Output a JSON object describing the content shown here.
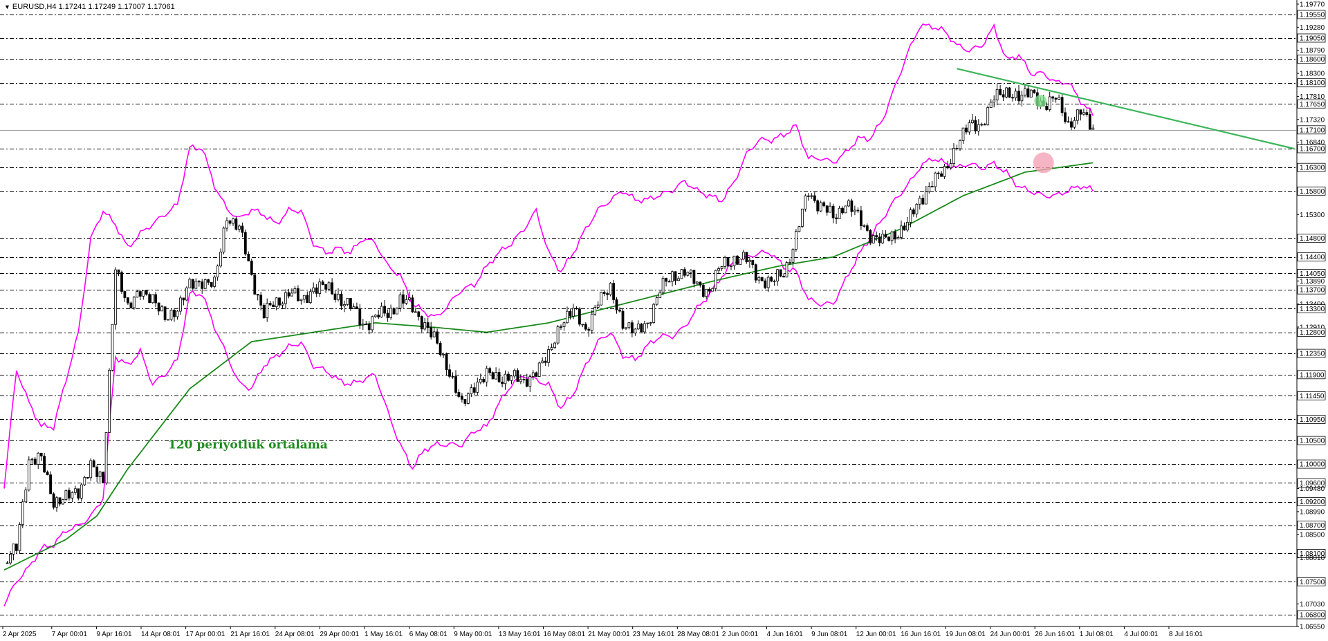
{
  "header": {
    "symbol": "EURUSD,H4",
    "ohlc": "1.17241 1.17249 1.17007 1.17061"
  },
  "colors": {
    "background": "#ffffff",
    "grid": "#000000",
    "candle": "#000000",
    "bands": "#ff00ff",
    "moving_average": "#1a8a1a",
    "trendline": "#3cb55a",
    "marker_green": "#7ee08a",
    "marker_red": "#f4a3b5",
    "price_label_bg": "#ffffff"
  },
  "chart_data": {
    "type": "candlestick",
    "timeframe": "H4",
    "ylim": [
      1.0655,
      1.1977
    ],
    "price_levels": [
      "1.19550",
      "1.19050",
      "1.18600",
      "1.18100",
      "1.17650",
      "1.17100",
      "1.16700",
      "1.16300",
      "1.15800",
      "1.14800",
      "1.14400",
      "1.14050",
      "1.13700",
      "1.13300",
      "1.12800",
      "1.12350",
      "1.11900",
      "1.11450",
      "1.10950",
      "1.10500",
      "1.10000",
      "1.09600",
      "1.09200",
      "1.08700",
      "1.08100",
      "1.07500",
      "1.06800"
    ],
    "y_ticks": [
      "1.19770",
      "1.19550",
      "1.19280",
      "1.19050",
      "1.18790",
      "1.18600",
      "1.18300",
      "1.18100",
      "1.17810",
      "1.17650",
      "1.17320",
      "1.17100",
      "1.16840",
      "1.16700",
      "1.16300",
      "1.15800",
      "1.15300",
      "1.14800",
      "1.14400",
      "1.14050",
      "1.13890",
      "1.13700",
      "1.13400",
      "1.13300",
      "1.12910",
      "1.12800",
      "1.12350",
      "1.11900",
      "1.11450",
      "1.10950",
      "1.10500",
      "1.10000",
      "1.09600",
      "1.09480",
      "1.09200",
      "1.08990",
      "1.08700",
      "1.08500",
      "1.08100",
      "1.08010",
      "1.07500",
      "1.07030",
      "1.06800",
      "1.06550"
    ],
    "x_ticks": [
      "2 Apr 2025",
      "7 Apr 00:01",
      "9 Apr 16:01",
      "14 Apr 08:01",
      "17 Apr 00:01",
      "21 Apr 16:01",
      "24 Apr 08:01",
      "29 Apr 00:01",
      "1 May 16:01",
      "6 May 08:01",
      "9 May 00:01",
      "13 May 16:01",
      "16 May 08:01",
      "21 May 00:01",
      "23 May 16:01",
      "28 May 08:01",
      "2 Jun 00:01",
      "4 Jun 16:01",
      "9 Jun 08:01",
      "12 Jun 00:01",
      "16 Jun 16:01",
      "19 Jun 08:01",
      "24 Jun 00:01",
      "26 Jun 16:01",
      "1 Jul 08:01",
      "4 Jul 00:01",
      "8 Jul 16:01"
    ],
    "current_price": "1.17100",
    "close_path": [
      [
        0,
        1.079
      ],
      [
        4,
        1.082
      ],
      [
        8,
        1.101
      ],
      [
        12,
        1.101
      ],
      [
        16,
        1.092
      ],
      [
        20,
        1.093
      ],
      [
        24,
        1.094
      ],
      [
        28,
        1.1
      ],
      [
        32,
        1.096
      ],
      [
        36,
        1.142
      ],
      [
        40,
        1.133
      ],
      [
        44,
        1.137
      ],
      [
        48,
        1.135
      ],
      [
        52,
        1.131
      ],
      [
        56,
        1.133
      ],
      [
        60,
        1.138
      ],
      [
        64,
        1.139
      ],
      [
        68,
        1.138
      ],
      [
        72,
        1.153
      ],
      [
        76,
        1.15
      ],
      [
        80,
        1.14
      ],
      [
        84,
        1.132
      ],
      [
        88,
        1.134
      ],
      [
        92,
        1.137
      ],
      [
        96,
        1.134
      ],
      [
        100,
        1.138
      ],
      [
        104,
        1.137
      ],
      [
        108,
        1.136
      ],
      [
        112,
        1.133
      ],
      [
        116,
        1.13
      ],
      [
        120,
        1.131
      ],
      [
        124,
        1.132
      ],
      [
        128,
        1.135
      ],
      [
        132,
        1.133
      ],
      [
        136,
        1.13
      ],
      [
        140,
        1.125
      ],
      [
        144,
        1.12
      ],
      [
        148,
        1.112
      ],
      [
        152,
        1.117
      ],
      [
        156,
        1.119
      ],
      [
        160,
        1.118
      ],
      [
        164,
        1.119
      ],
      [
        168,
        1.117
      ],
      [
        172,
        1.12
      ],
      [
        176,
        1.123
      ],
      [
        180,
        1.13
      ],
      [
        184,
        1.133
      ],
      [
        188,
        1.128
      ],
      [
        192,
        1.135
      ],
      [
        196,
        1.137
      ],
      [
        200,
        1.13
      ],
      [
        204,
        1.128
      ],
      [
        208,
        1.13
      ],
      [
        212,
        1.137
      ],
      [
        216,
        1.14
      ],
      [
        220,
        1.141
      ],
      [
        224,
        1.138
      ],
      [
        228,
        1.137
      ],
      [
        232,
        1.142
      ],
      [
        236,
        1.144
      ],
      [
        240,
        1.143
      ],
      [
        244,
        1.14
      ],
      [
        248,
        1.138
      ],
      [
        252,
        1.141
      ],
      [
        256,
        1.148
      ],
      [
        260,
        1.158
      ],
      [
        264,
        1.155
      ],
      [
        268,
        1.152
      ],
      [
        272,
        1.156
      ],
      [
        276,
        1.152
      ],
      [
        280,
        1.149
      ],
      [
        284,
        1.147
      ],
      [
        288,
        1.149
      ],
      [
        292,
        1.151
      ],
      [
        296,
        1.156
      ],
      [
        300,
        1.16
      ],
      [
        304,
        1.162
      ],
      [
        308,
        1.168
      ],
      [
        312,
        1.172
      ],
      [
        316,
        1.172
      ],
      [
        320,
        1.178
      ],
      [
        324,
        1.179
      ],
      [
        328,
        1.178
      ],
      [
        332,
        1.179
      ],
      [
        336,
        1.176
      ],
      [
        340,
        1.178
      ],
      [
        344,
        1.172
      ],
      [
        348,
        1.175
      ],
      [
        352,
        1.171
      ]
    ],
    "upper_band_path": [
      [
        0,
        1.095
      ],
      [
        4,
        1.12
      ],
      [
        8,
        1.113
      ],
      [
        12,
        1.108
      ],
      [
        16,
        1.108
      ],
      [
        20,
        1.118
      ],
      [
        24,
        1.128
      ],
      [
        28,
        1.148
      ],
      [
        32,
        1.154
      ],
      [
        36,
        1.151
      ],
      [
        40,
        1.146
      ],
      [
        44,
        1.149
      ],
      [
        48,
        1.151
      ],
      [
        52,
        1.153
      ],
      [
        56,
        1.155
      ],
      [
        60,
        1.167
      ],
      [
        64,
        1.167
      ],
      [
        68,
        1.159
      ],
      [
        72,
        1.154
      ],
      [
        76,
        1.152
      ],
      [
        80,
        1.154
      ],
      [
        84,
        1.153
      ],
      [
        88,
        1.151
      ],
      [
        92,
        1.154
      ],
      [
        96,
        1.154
      ],
      [
        100,
        1.147
      ],
      [
        104,
        1.145
      ],
      [
        108,
        1.146
      ],
      [
        112,
        1.145
      ],
      [
        116,
        1.148
      ],
      [
        120,
        1.147
      ],
      [
        124,
        1.142
      ],
      [
        128,
        1.14
      ],
      [
        132,
        1.134
      ],
      [
        136,
        1.132
      ],
      [
        140,
        1.131
      ],
      [
        144,
        1.134
      ],
      [
        148,
        1.137
      ],
      [
        152,
        1.138
      ],
      [
        156,
        1.142
      ],
      [
        160,
        1.145
      ],
      [
        164,
        1.147
      ],
      [
        168,
        1.15
      ],
      [
        172,
        1.154
      ],
      [
        176,
        1.145
      ],
      [
        180,
        1.141
      ],
      [
        184,
        1.145
      ],
      [
        188,
        1.15
      ],
      [
        192,
        1.154
      ],
      [
        196,
        1.156
      ],
      [
        200,
        1.158
      ],
      [
        204,
        1.156
      ],
      [
        208,
        1.156
      ],
      [
        212,
        1.157
      ],
      [
        216,
        1.158
      ],
      [
        220,
        1.16
      ],
      [
        224,
        1.158
      ],
      [
        228,
        1.157
      ],
      [
        232,
        1.156
      ],
      [
        236,
        1.16
      ],
      [
        240,
        1.166
      ],
      [
        244,
        1.169
      ],
      [
        248,
        1.169
      ],
      [
        252,
        1.17
      ],
      [
        256,
        1.172
      ],
      [
        260,
        1.165
      ],
      [
        264,
        1.165
      ],
      [
        268,
        1.164
      ],
      [
        272,
        1.166
      ],
      [
        276,
        1.169
      ],
      [
        280,
        1.169
      ],
      [
        284,
        1.173
      ],
      [
        288,
        1.18
      ],
      [
        292,
        1.187
      ],
      [
        296,
        1.193
      ],
      [
        300,
        1.193
      ],
      [
        304,
        1.192
      ],
      [
        308,
        1.189
      ],
      [
        312,
        1.188
      ],
      [
        316,
        1.189
      ],
      [
        320,
        1.193
      ],
      [
        324,
        1.186
      ],
      [
        328,
        1.187
      ],
      [
        332,
        1.183
      ],
      [
        336,
        1.183
      ],
      [
        340,
        1.181
      ],
      [
        344,
        1.181
      ],
      [
        348,
        1.177
      ],
      [
        352,
        1.174
      ]
    ],
    "lower_band_path": [
      [
        0,
        1.07
      ],
      [
        4,
        1.075
      ],
      [
        8,
        1.078
      ],
      [
        12,
        1.082
      ],
      [
        16,
        1.083
      ],
      [
        20,
        1.086
      ],
      [
        24,
        1.087
      ],
      [
        28,
        1.089
      ],
      [
        32,
        1.093
      ],
      [
        36,
        1.123
      ],
      [
        40,
        1.121
      ],
      [
        44,
        1.124
      ],
      [
        48,
        1.117
      ],
      [
        52,
        1.119
      ],
      [
        56,
        1.122
      ],
      [
        60,
        1.136
      ],
      [
        64,
        1.136
      ],
      [
        68,
        1.129
      ],
      [
        72,
        1.123
      ],
      [
        76,
        1.117
      ],
      [
        80,
        1.116
      ],
      [
        84,
        1.121
      ],
      [
        88,
        1.123
      ],
      [
        92,
        1.125
      ],
      [
        96,
        1.126
      ],
      [
        100,
        1.121
      ],
      [
        104,
        1.12
      ],
      [
        108,
        1.118
      ],
      [
        112,
        1.117
      ],
      [
        116,
        1.118
      ],
      [
        120,
        1.119
      ],
      [
        124,
        1.111
      ],
      [
        128,
        1.104
      ],
      [
        132,
        1.099
      ],
      [
        136,
        1.103
      ],
      [
        140,
        1.104
      ],
      [
        144,
        1.104
      ],
      [
        148,
        1.104
      ],
      [
        152,
        1.107
      ],
      [
        156,
        1.108
      ],
      [
        160,
        1.113
      ],
      [
        164,
        1.117
      ],
      [
        168,
        1.119
      ],
      [
        172,
        1.118
      ],
      [
        176,
        1.117
      ],
      [
        180,
        1.112
      ],
      [
        184,
        1.115
      ],
      [
        188,
        1.121
      ],
      [
        192,
        1.126
      ],
      [
        196,
        1.128
      ],
      [
        200,
        1.123
      ],
      [
        204,
        1.122
      ],
      [
        208,
        1.125
      ],
      [
        212,
        1.127
      ],
      [
        216,
        1.127
      ],
      [
        220,
        1.129
      ],
      [
        224,
        1.133
      ],
      [
        228,
        1.136
      ],
      [
        232,
        1.14
      ],
      [
        236,
        1.143
      ],
      [
        240,
        1.144
      ],
      [
        244,
        1.145
      ],
      [
        248,
        1.145
      ],
      [
        252,
        1.142
      ],
      [
        256,
        1.141
      ],
      [
        260,
        1.135
      ],
      [
        264,
        1.134
      ],
      [
        268,
        1.134
      ],
      [
        272,
        1.139
      ],
      [
        276,
        1.144
      ],
      [
        280,
        1.148
      ],
      [
        284,
        1.152
      ],
      [
        288,
        1.156
      ],
      [
        292,
        1.159
      ],
      [
        296,
        1.163
      ],
      [
        300,
        1.165
      ],
      [
        304,
        1.164
      ],
      [
        308,
        1.163
      ],
      [
        312,
        1.164
      ],
      [
        316,
        1.163
      ],
      [
        320,
        1.164
      ],
      [
        324,
        1.162
      ],
      [
        328,
        1.159
      ],
      [
        332,
        1.158
      ],
      [
        336,
        1.157
      ],
      [
        340,
        1.157
      ],
      [
        344,
        1.158
      ],
      [
        348,
        1.159
      ],
      [
        352,
        1.158
      ]
    ],
    "ma_path": [
      [
        0,
        1.0775
      ],
      [
        20,
        1.084
      ],
      [
        30,
        1.089
      ],
      [
        40,
        1.099
      ],
      [
        60,
        1.116
      ],
      [
        80,
        1.126
      ],
      [
        100,
        1.128
      ],
      [
        120,
        1.13
      ],
      [
        140,
        1.129
      ],
      [
        156,
        1.128
      ],
      [
        176,
        1.13
      ],
      [
        200,
        1.134
      ],
      [
        230,
        1.139
      ],
      [
        250,
        1.142
      ],
      [
        268,
        1.144
      ],
      [
        290,
        1.15
      ],
      [
        310,
        1.157
      ],
      [
        330,
        1.162
      ],
      [
        352,
        1.164
      ]
    ],
    "series": [
      {
        "name": "120 periyotluk ortalama",
        "kind": "moving_average"
      }
    ],
    "trendline": {
      "from": [
        308,
        1.184
      ],
      "to": [
        417,
        1.167
      ]
    },
    "markers": [
      {
        "type": "green-dot",
        "bar": 335,
        "price": 1.1771
      },
      {
        "type": "red-dot",
        "bar": 336,
        "price": 1.164
      }
    ],
    "annotations": [
      {
        "text": "120 periyotluk ortalama",
        "bar": 53,
        "price": 1.1033
      }
    ],
    "total_bars_span": 417
  }
}
